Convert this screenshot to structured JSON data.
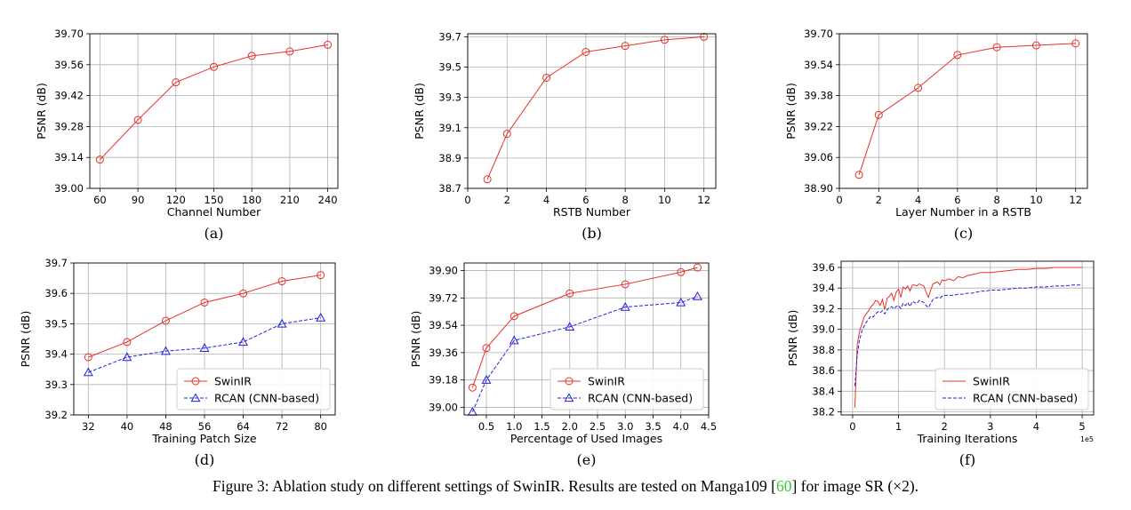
{
  "caption": {
    "prefix": "Figure 3: Ablation study on different settings of SwinIR. Results are tested on Manga109 [",
    "cite": "60",
    "suffix": "] for image SR (×2)."
  },
  "colors": {
    "swinir": "#e8312b",
    "rcan": "#2222dd",
    "grid": "#b0b0b0"
  },
  "chart_data": [
    {
      "id": "a",
      "sublabel": "(a)",
      "type": "line",
      "xlabel": "Channel Number",
      "ylabel": "PSNR (dB)",
      "xlim": [
        52,
        248
      ],
      "ylim": [
        39.0,
        39.7
      ],
      "xticks": [
        60,
        90,
        120,
        150,
        180,
        210,
        240
      ],
      "yticks": [
        39.0,
        39.14,
        39.28,
        39.42,
        39.56,
        39.7
      ],
      "ydec": 2,
      "series": [
        {
          "name": "",
          "color": "swinir",
          "marker": "circle",
          "x": [
            60,
            90,
            120,
            150,
            180,
            210,
            240
          ],
          "y": [
            39.13,
            39.31,
            39.48,
            39.55,
            39.6,
            39.62,
            39.65
          ]
        }
      ]
    },
    {
      "id": "b",
      "sublabel": "(b)",
      "type": "line",
      "xlabel": "RSTB Number",
      "ylabel": "PSNR (dB)",
      "xlim": [
        0,
        12.6
      ],
      "ylim": [
        38.7,
        39.72
      ],
      "xticks": [
        0,
        2,
        4,
        6,
        8,
        10,
        12
      ],
      "yticks": [
        38.7,
        38.9,
        39.1,
        39.3,
        39.5,
        39.7
      ],
      "ydec": 1,
      "series": [
        {
          "name": "",
          "color": "swinir",
          "marker": "circle",
          "x": [
            1,
            2,
            4,
            6,
            8,
            10,
            12
          ],
          "y": [
            38.76,
            39.06,
            39.43,
            39.6,
            39.64,
            39.68,
            39.7
          ]
        }
      ]
    },
    {
      "id": "c",
      "sublabel": "(c)",
      "type": "line",
      "xlabel": "Layer Number in a RSTB",
      "ylabel": "PSNR (dB)",
      "xlim": [
        0,
        12.6
      ],
      "ylim": [
        38.9,
        39.7
      ],
      "xticks": [
        0,
        2,
        4,
        6,
        8,
        10,
        12
      ],
      "yticks": [
        38.9,
        39.06,
        39.22,
        39.38,
        39.54,
        39.7
      ],
      "ydec": 2,
      "series": [
        {
          "name": "",
          "color": "swinir",
          "marker": "circle",
          "x": [
            1,
            2,
            4,
            6,
            8,
            10,
            12
          ],
          "y": [
            38.97,
            39.28,
            39.42,
            39.59,
            39.63,
            39.64,
            39.65
          ]
        }
      ]
    },
    {
      "id": "d",
      "sublabel": "(d)",
      "type": "line",
      "xlabel": "Training Patch Size",
      "ylabel": "PSNR (dB)",
      "xlim": [
        29,
        83
      ],
      "ylim": [
        39.2,
        39.7
      ],
      "xticks": [
        32,
        40,
        48,
        56,
        64,
        72,
        80
      ],
      "yticks": [
        39.2,
        39.3,
        39.4,
        39.5,
        39.6,
        39.7
      ],
      "ydec": 1,
      "legend": "lower-right",
      "series": [
        {
          "name": "SwinIR",
          "color": "swinir",
          "marker": "circle",
          "x": [
            32,
            40,
            48,
            56,
            64,
            72,
            80
          ],
          "y": [
            39.39,
            39.44,
            39.51,
            39.57,
            39.6,
            39.64,
            39.66
          ]
        },
        {
          "name": "RCAN (CNN-based)",
          "color": "rcan",
          "marker": "triangle",
          "dash": true,
          "x": [
            32,
            40,
            48,
            56,
            64,
            72,
            80
          ],
          "y": [
            39.34,
            39.39,
            39.41,
            39.42,
            39.44,
            39.5,
            39.52
          ]
        }
      ]
    },
    {
      "id": "e",
      "sublabel": "(e)",
      "type": "line",
      "xlabel": "Percentage of Used Images",
      "ylabel": "PSNR (dB)",
      "xlim": [
        0.1,
        4.5
      ],
      "ylim": [
        38.95,
        39.95
      ],
      "xticks": [
        0.5,
        1.0,
        1.5,
        2.0,
        2.5,
        3.0,
        3.5,
        4.0,
        4.5
      ],
      "yticks": [
        39.0,
        39.18,
        39.36,
        39.54,
        39.72,
        39.9
      ],
      "ydec": 2,
      "legend": "lower-right",
      "series": [
        {
          "name": "SwinIR",
          "color": "swinir",
          "marker": "circle",
          "x": [
            0.25,
            0.5,
            1.0,
            2.0,
            3.0,
            4.0,
            4.3
          ],
          "y": [
            39.13,
            39.39,
            39.6,
            39.75,
            39.81,
            39.89,
            39.92
          ]
        },
        {
          "name": "RCAN (CNN-based)",
          "color": "rcan",
          "marker": "triangle",
          "dash": true,
          "x": [
            0.25,
            0.5,
            1.0,
            2.0,
            3.0,
            4.0,
            4.3
          ],
          "y": [
            38.97,
            39.18,
            39.44,
            39.53,
            39.66,
            39.69,
            39.73
          ]
        }
      ]
    },
    {
      "id": "f",
      "sublabel": "(f)",
      "type": "line",
      "xlabel": "Training Iterations",
      "ylabel": "PSNR (dB)",
      "xsci": "1e5",
      "xlim": [
        -0.25,
        5.25
      ],
      "ylim": [
        38.17,
        39.66
      ],
      "xticks": [
        0,
        1,
        2,
        3,
        4,
        5
      ],
      "yticks": [
        38.2,
        38.4,
        38.6,
        38.8,
        39.0,
        39.2,
        39.4,
        39.6
      ],
      "ydec": 1,
      "legend": "lower-right",
      "series": [
        {
          "name": "SwinIR",
          "color": "swinir",
          "marker": "none",
          "x": [
            0.05,
            0.1,
            0.15,
            0.2,
            0.25,
            0.3,
            0.35,
            0.4,
            0.45,
            0.5,
            0.55,
            0.6,
            0.65,
            0.7,
            0.75,
            0.8,
            0.85,
            0.9,
            0.95,
            1.0,
            1.05,
            1.1,
            1.15,
            1.2,
            1.25,
            1.3,
            1.35,
            1.4,
            1.45,
            1.5,
            1.55,
            1.6,
            1.65,
            1.7,
            1.75,
            1.8,
            1.85,
            1.9,
            1.95,
            2.0,
            2.1,
            2.2,
            2.3,
            2.4,
            2.5,
            2.6,
            2.7,
            2.8,
            2.9,
            3.0,
            3.2,
            3.4,
            3.6,
            3.8,
            4.0,
            4.2,
            4.4,
            4.6,
            4.8,
            5.0
          ],
          "y": [
            38.24,
            38.85,
            38.98,
            39.05,
            39.12,
            39.15,
            39.18,
            39.22,
            39.24,
            39.28,
            39.27,
            39.23,
            39.29,
            39.19,
            39.3,
            39.32,
            39.35,
            39.28,
            39.36,
            39.39,
            39.31,
            39.41,
            39.39,
            39.42,
            39.37,
            39.43,
            39.43,
            39.42,
            39.44,
            39.43,
            39.42,
            39.36,
            39.31,
            39.38,
            39.44,
            39.45,
            39.46,
            39.43,
            39.48,
            39.47,
            39.49,
            39.47,
            39.51,
            39.5,
            39.52,
            39.53,
            39.54,
            39.55,
            39.55,
            39.55,
            39.56,
            39.57,
            39.58,
            39.58,
            39.59,
            39.59,
            39.6,
            39.6,
            39.6,
            39.6
          ]
        },
        {
          "name": "RCAN (CNN-based)",
          "color": "rcan",
          "marker": "none",
          "dash": true,
          "x": [
            0.05,
            0.1,
            0.15,
            0.2,
            0.25,
            0.3,
            0.35,
            0.4,
            0.45,
            0.5,
            0.55,
            0.6,
            0.65,
            0.7,
            0.75,
            0.8,
            0.85,
            0.9,
            0.95,
            1.0,
            1.05,
            1.1,
            1.15,
            1.2,
            1.25,
            1.3,
            1.35,
            1.4,
            1.45,
            1.5,
            1.55,
            1.6,
            1.65,
            1.7,
            1.75,
            1.8,
            1.85,
            1.9,
            1.95,
            2.0,
            2.1,
            2.2,
            2.3,
            2.4,
            2.5,
            2.6,
            2.7,
            2.8,
            2.9,
            3.0,
            3.2,
            3.4,
            3.6,
            3.8,
            4.0,
            4.2,
            4.4,
            4.6,
            4.8,
            5.0
          ],
          "y": [
            38.45,
            38.75,
            38.9,
            38.98,
            39.03,
            39.07,
            39.1,
            39.13,
            39.12,
            39.15,
            39.17,
            39.16,
            39.18,
            39.15,
            39.19,
            39.21,
            39.22,
            39.2,
            39.22,
            39.23,
            39.2,
            39.25,
            39.23,
            39.26,
            39.22,
            39.27,
            39.26,
            39.25,
            39.28,
            39.27,
            39.26,
            39.23,
            39.21,
            39.25,
            39.29,
            39.3,
            39.31,
            39.3,
            39.32,
            39.33,
            39.33,
            39.33,
            39.34,
            39.34,
            39.35,
            39.35,
            39.36,
            39.37,
            39.37,
            39.38,
            39.38,
            39.39,
            39.4,
            39.4,
            39.41,
            39.41,
            39.42,
            39.42,
            39.43,
            39.43
          ]
        }
      ]
    }
  ]
}
